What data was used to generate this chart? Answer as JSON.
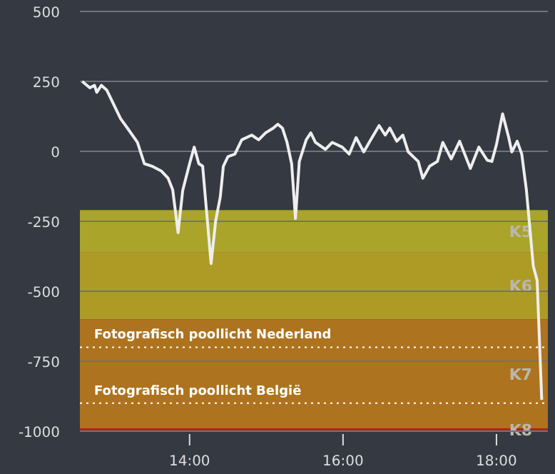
{
  "chart_data": {
    "type": "line",
    "x": [
      12.6,
      12.7,
      12.76,
      12.79,
      12.85,
      12.92,
      13.01,
      13.1,
      13.19,
      13.32,
      13.41,
      13.51,
      13.63,
      13.72,
      13.78,
      13.85,
      13.91,
      14.0,
      14.06,
      14.12,
      14.17,
      14.28,
      14.34,
      14.4,
      14.44,
      14.5,
      14.59,
      14.68,
      14.81,
      14.9,
      14.99,
      15.09,
      15.15,
      15.21,
      15.27,
      15.33,
      15.38,
      15.43,
      15.52,
      15.58,
      15.64,
      15.77,
      15.86,
      15.99,
      16.08,
      16.17,
      16.27,
      16.36,
      16.47,
      16.55,
      16.61,
      16.7,
      16.78,
      16.85,
      16.98,
      17.04,
      17.13,
      17.23,
      17.3,
      17.41,
      17.52,
      17.66,
      17.77,
      17.88,
      17.94,
      18.0,
      18.08,
      18.16,
      18.2,
      18.27,
      18.33,
      18.39,
      18.48,
      18.53,
      18.59
    ],
    "series": [
      {
        "color": "#eeeeee",
        "values": [
          250,
          227,
          236,
          211,
          236,
          219,
          168,
          117,
          83,
          32,
          -44,
          -53,
          -70,
          -96,
          -138,
          -291,
          -140,
          -44,
          15,
          -44,
          -53,
          -401,
          -248,
          -163,
          -53,
          -19,
          -10,
          41,
          58,
          41,
          66,
          83,
          97,
          83,
          32,
          -44,
          -240,
          -36,
          41,
          66,
          32,
          7,
          32,
          15,
          -10,
          49,
          -2,
          41,
          92,
          58,
          83,
          36,
          58,
          -2,
          -36,
          -96,
          -53,
          -36,
          32,
          -27,
          36,
          -61,
          15,
          -32,
          -36,
          24,
          134,
          49,
          -2,
          36,
          -10,
          -138,
          -410,
          -461,
          -888
        ]
      }
    ],
    "xlim": [
      12.57,
      18.67
    ],
    "xticks": [
      {
        "value": 14,
        "label": "14:00"
      },
      {
        "value": 16,
        "label": "16:00"
      },
      {
        "value": 18,
        "label": "18:00"
      }
    ],
    "ylim": [
      -1000,
      500
    ],
    "yticks": [
      -1000,
      -750,
      -500,
      -250,
      0,
      250,
      500
    ],
    "grid": "y",
    "marker": "none",
    "line_style": "solid",
    "bands": [
      {
        "axis": "y",
        "from": -360,
        "to": -210,
        "label": "K5",
        "color": "#aaa52a"
      },
      {
        "axis": "y",
        "from": -600,
        "to": -360,
        "label": "K6",
        "color": "#ad9b25"
      },
      {
        "axis": "y",
        "from": -990,
        "to": -600,
        "label": "K7",
        "color": "#ae731e"
      },
      {
        "axis": "y",
        "from": -1000,
        "to": -990,
        "label": "K8",
        "color": "#b52218"
      }
    ],
    "ref_lines": [
      {
        "axis": "y",
        "value": -700,
        "label": "Fotografisch poollicht Nederland",
        "color": "#ffffff",
        "line_style": "dotted"
      },
      {
        "axis": "y",
        "value": -900,
        "label": "Fotografisch poollicht België",
        "color": "#ffffff",
        "line_style": "dotted"
      }
    ]
  }
}
